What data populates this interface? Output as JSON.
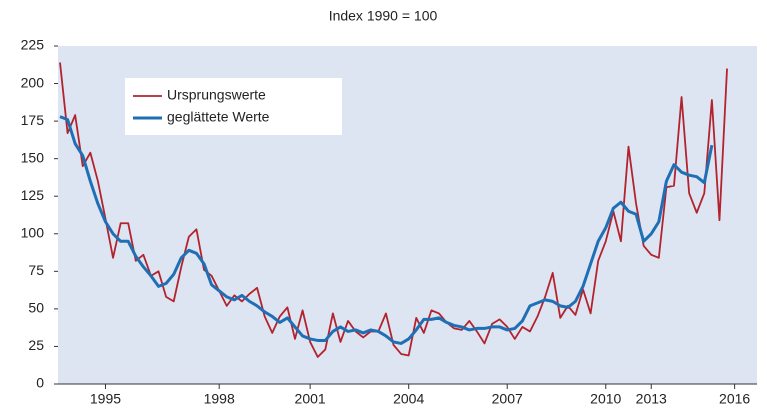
{
  "chart_data": {
    "type": "line",
    "title": "Index 1990 = 100",
    "categories": [
      null,
      null,
      null,
      null,
      null,
      null,
      "1995",
      null,
      null,
      null,
      null,
      null,
      null,
      null,
      null,
      null,
      null,
      null,
      null,
      null,
      null,
      "1998",
      null,
      null,
      null,
      null,
      null,
      null,
      null,
      null,
      null,
      null,
      null,
      "2001",
      null,
      null,
      null,
      null,
      null,
      null,
      null,
      null,
      null,
      null,
      null,
      null,
      "2004",
      null,
      null,
      null,
      null,
      null,
      null,
      null,
      null,
      null,
      null,
      null,
      null,
      "2007",
      null,
      null,
      null,
      null,
      null,
      null,
      null,
      null,
      null,
      null,
      null,
      null,
      "2010",
      null,
      null,
      null,
      null,
      null,
      "2013",
      null,
      null,
      null,
      null,
      null,
      null,
      null,
      null,
      null,
      null,
      "2016",
      null,
      null
    ],
    "series": [
      {
        "name": "Ursprungswerte",
        "color": "#b3232d",
        "values": [
          214,
          167,
          179,
          145,
          154,
          135,
          110,
          84,
          107,
          107,
          82,
          86,
          72,
          75,
          58,
          55,
          78,
          98,
          103,
          76,
          72,
          62,
          52,
          59,
          55,
          60,
          64,
          45,
          34,
          45,
          51,
          30,
          49,
          28,
          18,
          23,
          47,
          28,
          42,
          35,
          31,
          35,
          35,
          47,
          26,
          20,
          19,
          44,
          34,
          49,
          47,
          41,
          37,
          36,
          42,
          35,
          27,
          40,
          43,
          38,
          30,
          38,
          35,
          45,
          58,
          74,
          44,
          52,
          46,
          63,
          47,
          82,
          95,
          115,
          95,
          158,
          120,
          92,
          86,
          84,
          131,
          132,
          191,
          127,
          114,
          127,
          189,
          109,
          210,
          null,
          null,
          null
        ]
      },
      {
        "name": "geglättete Werte",
        "color": "#1f6fb5",
        "values": [
          178,
          176,
          160,
          152,
          135,
          120,
          108,
          100,
          95,
          95,
          85,
          78,
          72,
          65,
          67,
          73,
          84,
          89,
          87,
          80,
          66,
          62,
          58,
          56,
          59,
          55,
          52,
          48,
          45,
          41,
          44,
          38,
          32,
          30,
          29,
          29,
          35,
          38,
          35,
          36,
          34,
          36,
          35,
          32,
          28,
          27,
          30,
          36,
          43,
          43,
          44,
          41,
          39,
          38,
          36,
          37,
          37,
          38,
          38,
          36,
          37,
          42,
          52,
          54,
          56,
          55,
          52,
          51,
          55,
          65,
          80,
          95,
          104,
          117,
          121,
          115,
          113,
          95,
          100,
          108,
          135,
          146,
          141,
          139,
          138,
          134,
          159,
          null,
          null,
          null,
          null,
          null
        ]
      }
    ],
    "ylim": [
      0,
      225
    ],
    "yticks": [
      0,
      25,
      50,
      75,
      100,
      125,
      150,
      175,
      200,
      225
    ],
    "grid": false
  }
}
